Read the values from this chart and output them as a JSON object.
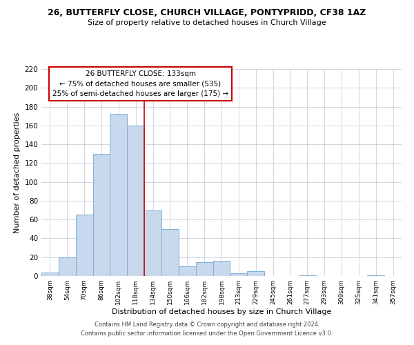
{
  "title": "26, BUTTERFLY CLOSE, CHURCH VILLAGE, PONTYPRIDD, CF38 1AZ",
  "subtitle": "Size of property relative to detached houses in Church Village",
  "xlabel": "Distribution of detached houses by size in Church Village",
  "ylabel": "Number of detached properties",
  "bar_color": "#c8d8ed",
  "bar_edge_color": "#7bafd4",
  "categories": [
    "38sqm",
    "54sqm",
    "70sqm",
    "86sqm",
    "102sqm",
    "118sqm",
    "134sqm",
    "150sqm",
    "166sqm",
    "182sqm",
    "198sqm",
    "213sqm",
    "229sqm",
    "245sqm",
    "261sqm",
    "277sqm",
    "293sqm",
    "309sqm",
    "325sqm",
    "341sqm",
    "357sqm"
  ],
  "values": [
    4,
    20,
    65,
    130,
    172,
    160,
    70,
    50,
    10,
    15,
    16,
    3,
    5,
    0,
    0,
    1,
    0,
    0,
    0,
    1,
    0
  ],
  "ylim": [
    0,
    220
  ],
  "yticks": [
    0,
    20,
    40,
    60,
    80,
    100,
    120,
    140,
    160,
    180,
    200,
    220
  ],
  "vline_idx": 6,
  "vline_color": "#cc0000",
  "annotation_title": "26 BUTTERFLY CLOSE: 133sqm",
  "annotation_line1": "← 75% of detached houses are smaller (535)",
  "annotation_line2": "25% of semi-detached houses are larger (175) →",
  "annotation_box_edgecolor": "#cc0000",
  "footer_line1": "Contains HM Land Registry data © Crown copyright and database right 2024.",
  "footer_line2": "Contains public sector information licensed under the Open Government Licence v3.0.",
  "background_color": "#ffffff",
  "grid_color": "#c8d0d8"
}
